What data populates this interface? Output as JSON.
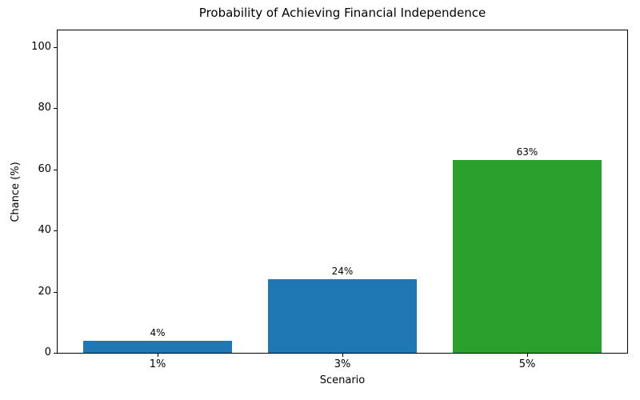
{
  "chart_data": {
    "type": "bar",
    "title": "Probability of Achieving Financial Independence",
    "xlabel": "Scenario",
    "ylabel": "Chance (%)",
    "categories": [
      "1%",
      "3%",
      "5%"
    ],
    "values": [
      4,
      24,
      63
    ],
    "bar_labels": [
      "4%",
      "24%",
      "63%"
    ],
    "bar_colors": [
      "#1f77b4",
      "#1f77b4",
      "#2ca02c"
    ],
    "ylim": [
      0,
      105.5
    ],
    "yticks": [
      0,
      20,
      40,
      60,
      80,
      100
    ],
    "grid": false,
    "legend_position": "none"
  }
}
